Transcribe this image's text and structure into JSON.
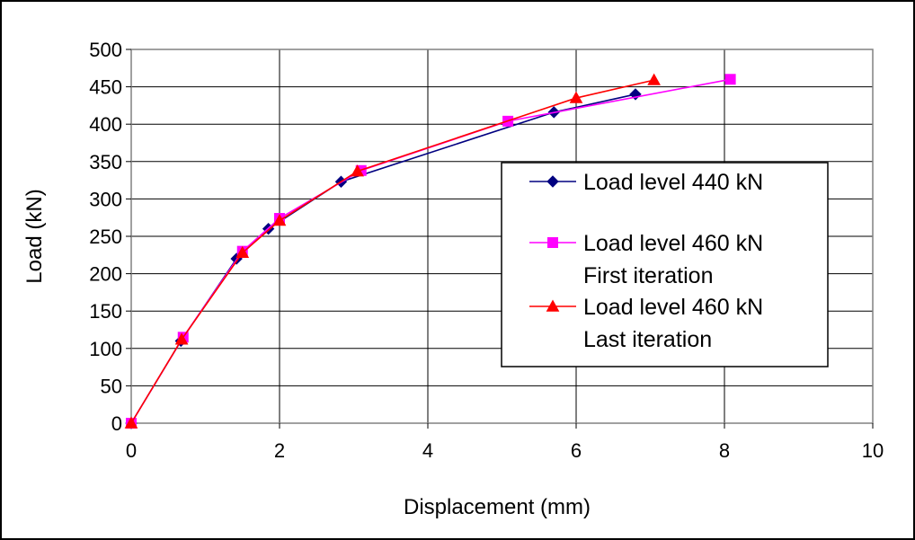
{
  "chart_data": {
    "type": "line",
    "title": "",
    "xlabel": "Displacement (mm)",
    "ylabel": "Load (kN)",
    "xlim": [
      0,
      10
    ],
    "ylim": [
      0,
      500
    ],
    "x_ticks": [
      0,
      2,
      4,
      6,
      8,
      10
    ],
    "y_ticks": [
      0,
      50,
      100,
      150,
      200,
      250,
      300,
      350,
      400,
      450,
      500
    ],
    "x_tick_labels": [
      "0",
      "2",
      "4",
      "6",
      "8",
      "10"
    ],
    "y_tick_labels": [
      "0",
      "50",
      "100",
      "150",
      "200",
      "250",
      "300",
      "350",
      "400",
      "450",
      "500"
    ],
    "grid": true,
    "legend_position": "right",
    "series": [
      {
        "name_lines": [
          "Load level 440 kN"
        ],
        "color": "#000080",
        "marker": "diamond",
        "x": [
          0,
          0.67,
          1.42,
          1.85,
          2.83,
          5.7,
          6.8
        ],
        "y": [
          0,
          110,
          220,
          260,
          323,
          416,
          440
        ]
      },
      {
        "name_lines": [
          "Load level 460 kN",
          "First iteration"
        ],
        "color": "#ff00ff",
        "marker": "square",
        "x": [
          0,
          0.7,
          1.5,
          2.0,
          3.1,
          5.08,
          8.08
        ],
        "y": [
          0,
          115,
          230,
          274,
          338,
          404,
          460
        ]
      },
      {
        "name_lines": [
          "Load level 460 kN",
          "Last iteration"
        ],
        "color": "#ff0000",
        "marker": "triangle",
        "x": [
          0,
          0.68,
          1.5,
          2.0,
          3.05,
          6.0,
          7.05
        ],
        "y": [
          0,
          112,
          228,
          271,
          337,
          435,
          459
        ]
      }
    ]
  }
}
